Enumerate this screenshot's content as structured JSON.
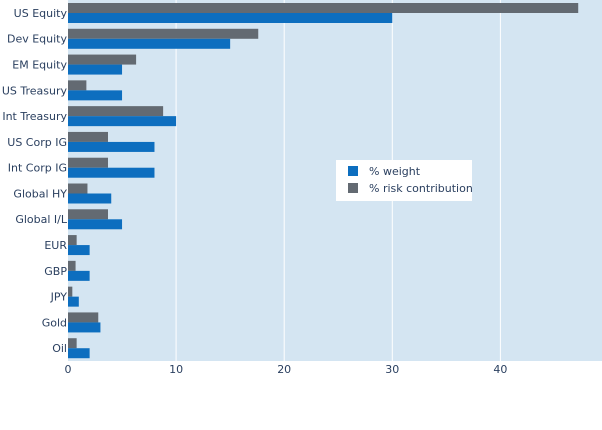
{
  "chart_data": {
    "type": "bar",
    "orientation": "horizontal",
    "title": "",
    "xlabel": "",
    "ylabel": "",
    "categories": [
      "US Equity",
      "Dev Equity",
      "EM Equity",
      "US Treasury",
      "Int Treasury",
      "US Corp IG",
      "Int Corp IG",
      "Global HY",
      "Global I/L",
      "EUR",
      "GBP",
      "JPY",
      "Gold",
      "Oil"
    ],
    "series": [
      {
        "name": "% weight",
        "color": "#0d6ebf",
        "values": [
          30,
          15,
          5,
          5,
          10,
          8,
          8,
          4,
          5,
          2,
          2,
          1,
          3,
          2
        ]
      },
      {
        "name": "% risk contribution",
        "color": "#636a72",
        "values": [
          47.2,
          17.6,
          6.3,
          1.7,
          8.8,
          3.7,
          3.7,
          1.8,
          3.7,
          0.8,
          0.7,
          0.4,
          2.8,
          0.8
        ]
      }
    ],
    "xlim": [
      0,
      49.4
    ],
    "xticks": [
      0,
      10,
      20,
      30,
      40
    ],
    "grid": true,
    "legend_position": "right-center",
    "plot_background": "#d4e5f2"
  }
}
